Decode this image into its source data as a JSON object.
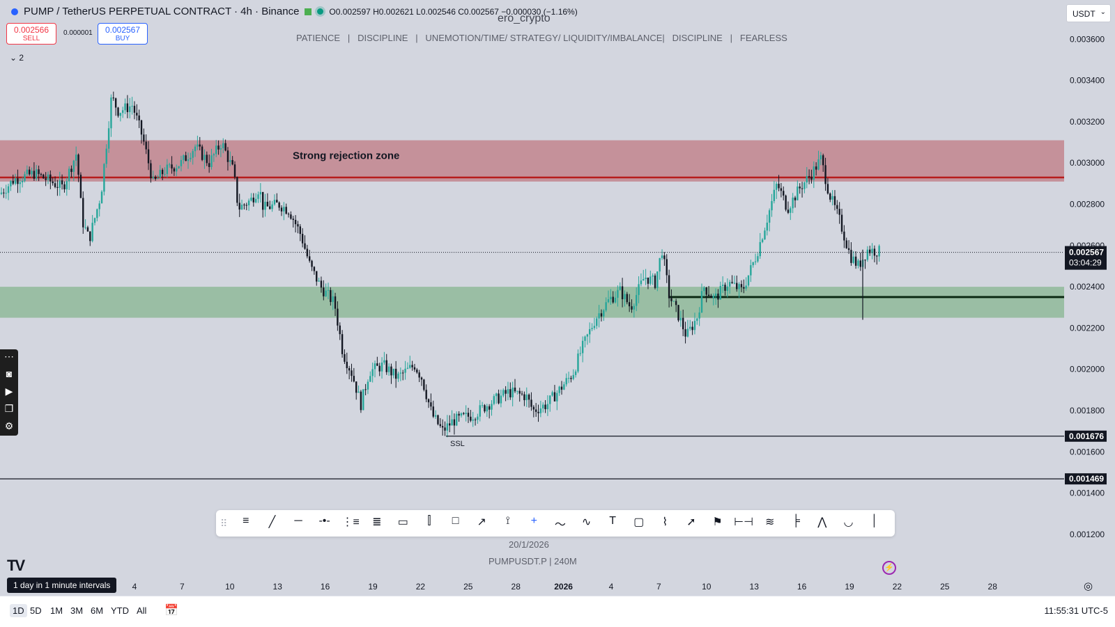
{
  "header": {
    "title": "PUMP / TetherUS PERPETUAL CONTRACT · 4h · Binance",
    "ohlc": "O0.002597 H0.002621 L0.002546 C0.002567 −0.000030 (−1.16%)",
    "sell_price": "0.002566",
    "sell_label": "SELL",
    "spread": "0.000001",
    "buy_price": "0.002567",
    "buy_label": "BUY",
    "currency": "USDT",
    "watermark": "ero_crypto",
    "tagline": "PATIENCE   |   DISCIPLINE   |   UNEMOTION/TIME/ STRATEGY/ LIQUIDITY/IMBALANCE|   DISCIPLINE   |   FEARLESS",
    "indicator_count": "2"
  },
  "colors": {
    "background": "#d3d6df",
    "bull": "#26a69a",
    "bear": "#131722",
    "red_zone": "#c48d96",
    "red_line": "#b71c1c",
    "green_zone": "#94bb9d",
    "sell": "#f23645",
    "buy": "#2962ff"
  },
  "chart_data": {
    "type": "candlestick",
    "y_ticks": [
      "0.003600",
      "0.003400",
      "0.003200",
      "0.003000",
      "0.002800",
      "0.002600",
      "0.002400",
      "0.002200",
      "0.002000",
      "0.001800",
      "0.001600",
      "0.001400",
      "0.001200"
    ],
    "ylim": [
      0.00113,
      0.00375
    ],
    "x_ticks": [
      "4",
      "7",
      "10",
      "13",
      "16",
      "19",
      "22",
      "25",
      "28",
      "2026",
      "4",
      "7",
      "10",
      "13",
      "16",
      "19",
      "22",
      "25",
      "28"
    ],
    "last_price": "0.002567",
    "countdown": "03:04:29",
    "price_tags": [
      "0.001676",
      "0.001469"
    ],
    "zones": [
      {
        "label": "Strong rejection zone",
        "from": 0.00291,
        "to": 0.00311,
        "line": 0.00293,
        "color": "red"
      },
      {
        "label": "",
        "from": 0.00225,
        "to": 0.0024,
        "line": 0.00235,
        "color": "green"
      }
    ],
    "ssl": {
      "label": "SSL",
      "value": 0.001676
    },
    "lower_line": 0.001469,
    "path": [
      [
        0,
        0.00285
      ],
      [
        20,
        0.00292
      ],
      [
        50,
        0.00295
      ],
      [
        90,
        0.00288
      ],
      [
        110,
        0.00305
      ],
      [
        118,
        0.00272
      ],
      [
        128,
        0.00263
      ],
      [
        145,
        0.00285
      ],
      [
        160,
        0.00332
      ],
      [
        170,
        0.00325
      ],
      [
        190,
        0.00328
      ],
      [
        205,
        0.00312
      ],
      [
        220,
        0.0029
      ],
      [
        235,
        0.00296
      ],
      [
        260,
        0.003
      ],
      [
        280,
        0.00308
      ],
      [
        300,
        0.003
      ],
      [
        318,
        0.0031
      ],
      [
        335,
        0.00296
      ],
      [
        342,
        0.00278
      ],
      [
        360,
        0.00282
      ],
      [
        372,
        0.00288
      ],
      [
        378,
        0.00278
      ],
      [
        400,
        0.0028
      ],
      [
        415,
        0.00277
      ],
      [
        432,
        0.00265
      ],
      [
        445,
        0.0025
      ],
      [
        460,
        0.0024
      ],
      [
        480,
        0.00232
      ],
      [
        492,
        0.00208
      ],
      [
        505,
        0.00198
      ],
      [
        518,
        0.00183
      ],
      [
        530,
        0.00199
      ],
      [
        550,
        0.00202
      ],
      [
        570,
        0.00196
      ],
      [
        595,
        0.00202
      ],
      [
        605,
        0.00196
      ],
      [
        620,
        0.00178
      ],
      [
        635,
        0.0017
      ],
      [
        650,
        0.00175
      ],
      [
        680,
        0.00178
      ],
      [
        700,
        0.00183
      ],
      [
        730,
        0.00189
      ],
      [
        755,
        0.00187
      ],
      [
        765,
        0.0018
      ],
      [
        785,
        0.00183
      ],
      [
        805,
        0.00191
      ],
      [
        822,
        0.00198
      ],
      [
        835,
        0.0021
      ],
      [
        855,
        0.00225
      ],
      [
        875,
        0.00234
      ],
      [
        890,
        0.00238
      ],
      [
        905,
        0.0023
      ],
      [
        925,
        0.00245
      ],
      [
        940,
        0.00242
      ],
      [
        950,
        0.00258
      ],
      [
        960,
        0.00236
      ],
      [
        975,
        0.00225
      ],
      [
        985,
        0.00216
      ],
      [
        1000,
        0.00225
      ],
      [
        1010,
        0.0024
      ],
      [
        1025,
        0.00234
      ],
      [
        1045,
        0.00242
      ],
      [
        1065,
        0.00238
      ],
      [
        1085,
        0.00255
      ],
      [
        1100,
        0.00272
      ],
      [
        1115,
        0.0029
      ],
      [
        1130,
        0.00278
      ],
      [
        1148,
        0.00288
      ],
      [
        1165,
        0.00295
      ],
      [
        1178,
        0.00302
      ],
      [
        1190,
        0.00285
      ],
      [
        1205,
        0.00272
      ],
      [
        1220,
        0.00255
      ],
      [
        1232,
        0.0025
      ],
      [
        1245,
        0.00258
      ],
      [
        1262,
        0.00257
      ]
    ]
  },
  "toolbar": {
    "tools": [
      "≡",
      "╱",
      "─",
      "-•-",
      "⋮≡",
      "≣",
      "▭",
      "⫿",
      "□",
      "↗",
      "⟟",
      "+",
      "〜",
      "∿",
      "T",
      "▢",
      "⌇",
      "➚",
      "⚑",
      "⊢⊣",
      "≋",
      "╞",
      "⋀",
      "◡",
      "│"
    ]
  },
  "bottom": {
    "crosshair_date": "20/1/2026",
    "symbol_info": "PUMPUSDT.P  |  240M",
    "tooltip": "1 day in 1 minute intervals",
    "ranges": [
      "1D",
      "5D",
      "1M",
      "3M",
      "6M",
      "YTD",
      "All"
    ],
    "clock": "11:55:31 UTC-5"
  }
}
